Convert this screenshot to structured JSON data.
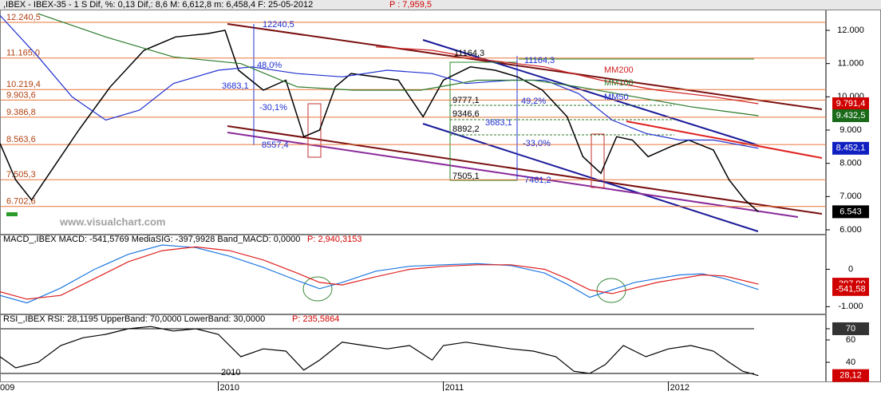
{
  "chart_data": [
    {
      "type": "line",
      "title": ",IBEX - IBEX-35 -  1 S Dif, %: 0,13 Dif,: 8,6 M: 6,612,8 m: 6,458,4 F: 25-05-2012",
      "subtitle": "P : 7,959,5",
      "xlim": [
        2009.03,
        2012.7
      ],
      "ylim": [
        5880,
        12624
      ],
      "xticks": [
        {
          "value": 2009,
          "label": "009"
        },
        2010,
        2011,
        2012
      ],
      "yticks": [
        {
          "value": 12000,
          "label": "12.000"
        },
        {
          "value": 11000,
          "label": "11.000"
        },
        {
          "value": 10000,
          "label": "10.000"
        },
        {
          "value": 9000,
          "label": "9.000"
        },
        {
          "value": 8000,
          "label": "8.000"
        },
        {
          "value": 7000,
          "label": "7.000"
        },
        {
          "value": 6000,
          "label": "6.000"
        }
      ],
      "levels": [
        {
          "value": 12240.5,
          "label": "12.240,5"
        },
        {
          "value": 11165.0,
          "label": "11.165,0"
        },
        {
          "value": 10219.4,
          "label": "10.219,4"
        },
        {
          "value": 9903.6,
          "label": "9.903,6"
        },
        {
          "value": 9386.8,
          "label": "9.386,8"
        },
        {
          "value": 8563.6,
          "label": "8.563,6"
        },
        {
          "value": 7505.3,
          "label": "7.505,3"
        },
        {
          "value": 6702.6,
          "label": "6.702,6"
        }
      ],
      "series": [
        {
          "name": "IBEX",
          "color": "#000000",
          "x": [
            2009.03,
            2009.1,
            2009.17,
            2009.28,
            2009.38,
            2009.52,
            2009.67,
            2009.81,
            2009.95,
            2010.03,
            2010.09,
            2010.2,
            2010.3,
            2010.38,
            2010.45,
            2010.52,
            2010.59,
            2010.7,
            2010.8,
            2010.91,
            2011.0,
            2011.12,
            2011.23,
            2011.33,
            2011.44,
            2011.55,
            2011.62,
            2011.7,
            2011.77,
            2011.84,
            2011.91,
            2012.01,
            2012.09,
            2012.2,
            2012.27,
            2012.34,
            2012.4
          ],
          "values": [
            8600,
            7500,
            6900,
            8000,
            9000,
            10300,
            11400,
            11800,
            11900,
            12000,
            10800,
            10200,
            10500,
            8800,
            9000,
            10300,
            10700,
            10600,
            10500,
            9400,
            10500,
            10900,
            10800,
            10600,
            10200,
            9400,
            8200,
            7700,
            8800,
            8700,
            8200,
            8500,
            8700,
            8400,
            7500,
            6900,
            6543
          ]
        },
        {
          "name": "MM50",
          "color": "#2030d0",
          "x": [
            2009.03,
            2009.2,
            2009.35,
            2009.5,
            2009.65,
            2009.8,
            2010.0,
            2010.15,
            2010.35,
            2010.55,
            2010.75,
            2010.95,
            2011.1,
            2011.3,
            2011.45,
            2011.6,
            2011.75,
            2011.9,
            2012.05,
            2012.2,
            2012.4
          ],
          "values": [
            12450,
            11200,
            10000,
            9300,
            9600,
            10400,
            10800,
            10900,
            10700,
            10600,
            10800,
            10700,
            10400,
            10500,
            10500,
            10100,
            9300,
            8900,
            8700,
            8700,
            8452.1
          ]
        },
        {
          "name": "MM100",
          "color": "#2a7a2a",
          "x": [
            2009.2,
            2009.5,
            2009.8,
            2010.1,
            2010.35,
            2010.6,
            2010.9,
            2011.15,
            2011.4,
            2011.6,
            2011.85,
            2012.1,
            2012.4
          ],
          "values": [
            12500,
            11800,
            11200,
            11000,
            10300,
            10200,
            10200,
            10500,
            10500,
            10300,
            10000,
            9700,
            9432.5
          ]
        },
        {
          "name": "MM200",
          "color": "#d02020",
          "x": [
            2010.7,
            2010.95,
            2011.2,
            2011.45,
            2011.7,
            2011.95,
            2012.2,
            2012.4
          ],
          "values": [
            11500,
            11400,
            11100,
            10900,
            10500,
            10200,
            10000,
            9791.4
          ]
        }
      ],
      "end_labels": [
        {
          "value": 9791.4,
          "label": "9.791,4",
          "color": "#d00000"
        },
        {
          "value": 9432.5,
          "label": "9.432,5",
          "color": "#1a6a1a"
        },
        {
          "value": 8452.1,
          "label": "8.452,1",
          "color": "#1020c0"
        },
        {
          "value": 6543,
          "label": "6.543",
          "color": "#000000"
        }
      ],
      "annotations": [
        "12240,5",
        "48,0%",
        "3683,1",
        "-30,1%",
        "8557,4",
        "11164,3",
        "11164,3",
        "9777,1",
        "49,2%",
        "9346,6",
        "3683,1",
        "8892,2",
        "-33,0%",
        "7505,1",
        "7461,2",
        "MM200",
        "MM100",
        "MM50",
        "www.visualchart.com",
        "2010"
      ]
    },
    {
      "type": "line",
      "title": "MACD_,IBEX MACD: -541,5769 MediaSIG: -397,9928 Band_MACD: 0,0000",
      "subtitle": "P: 2,940,3153",
      "xlim": [
        2009.03,
        2012.7
      ],
      "ylim": [
        -1186,
        907
      ],
      "yticks": [
        0,
        {
          "value": -1000,
          "label": "-1.000"
        }
      ],
      "series": [
        {
          "color": "#1e78e0",
          "x": [
            2009.03,
            2009.15,
            2009.3,
            2009.45,
            2009.6,
            2009.75,
            2009.9,
            2010.05,
            2010.2,
            2010.35,
            2010.45,
            2010.55,
            2010.7,
            2010.85,
            2011.0,
            2011.15,
            2011.3,
            2011.45,
            2011.55,
            2011.65,
            2011.75,
            2011.85,
            2011.95,
            2012.05,
            2012.15,
            2012.25,
            2012.4
          ],
          "values": [
            -700,
            -900,
            -500,
            0,
            400,
            650,
            580,
            350,
            50,
            -300,
            -520,
            -350,
            -50,
            80,
            120,
            150,
            100,
            -100,
            -400,
            -750,
            -550,
            -350,
            -250,
            -150,
            -120,
            -250,
            -541.5769
          ]
        },
        {
          "color": "#e02020",
          "x": [
            2009.03,
            2009.15,
            2009.3,
            2009.45,
            2009.6,
            2009.75,
            2009.9,
            2010.05,
            2010.2,
            2010.35,
            2010.45,
            2010.55,
            2010.7,
            2010.85,
            2011.0,
            2011.15,
            2011.3,
            2011.45,
            2011.55,
            2011.65,
            2011.75,
            2011.85,
            2011.95,
            2012.05,
            2012.15,
            2012.25,
            2012.4
          ],
          "values": [
            -600,
            -800,
            -700,
            -250,
            200,
            500,
            600,
            500,
            250,
            -100,
            -350,
            -420,
            -200,
            0,
            80,
            120,
            120,
            0,
            -250,
            -550,
            -650,
            -500,
            -350,
            -250,
            -150,
            -180,
            -397.9928
          ]
        }
      ],
      "end_labels": [
        {
          "value": -397.9928,
          "label": "-397,99",
          "color": "#d00000"
        },
        {
          "value": -541.5769,
          "label": "-541,58",
          "color": "#d00000"
        }
      ]
    },
    {
      "type": "line",
      "title": "RSI_,IBEX RSI: 28,1195 UpperBand: 70,0000 LowerBand: 30,0000",
      "subtitle": "P: 235,5864",
      "xlim": [
        2009.03,
        2012.7
      ],
      "ylim": [
        22.9,
        82.1
      ],
      "yticks": [
        70,
        60,
        40
      ],
      "bands": [
        70,
        30
      ],
      "series": [
        {
          "color": "#000000",
          "x": [
            2009.03,
            2009.1,
            2009.2,
            2009.3,
            2009.4,
            2009.5,
            2009.6,
            2009.7,
            2009.8,
            2009.9,
            2010.0,
            2010.1,
            2010.2,
            2010.3,
            2010.38,
            2010.45,
            2010.55,
            2010.65,
            2010.75,
            2010.85,
            2010.95,
            2011.0,
            2011.1,
            2011.2,
            2011.3,
            2011.4,
            2011.5,
            2011.58,
            2011.65,
            2011.72,
            2011.8,
            2011.9,
            2012.0,
            2012.1,
            2012.2,
            2012.27,
            2012.33,
            2012.4
          ],
          "values": [
            45,
            35,
            40,
            55,
            62,
            65,
            70,
            72,
            68,
            70,
            65,
            45,
            52,
            50,
            33,
            42,
            58,
            55,
            52,
            55,
            42,
            55,
            58,
            55,
            52,
            50,
            45,
            32,
            30,
            38,
            55,
            45,
            52,
            55,
            50,
            40,
            32,
            28.12
          ]
        }
      ],
      "end_labels": [
        {
          "value": 70,
          "label": "70",
          "color": "#333333"
        },
        {
          "value": 28.12,
          "label": "28,12",
          "color": "#d00000"
        }
      ]
    }
  ]
}
